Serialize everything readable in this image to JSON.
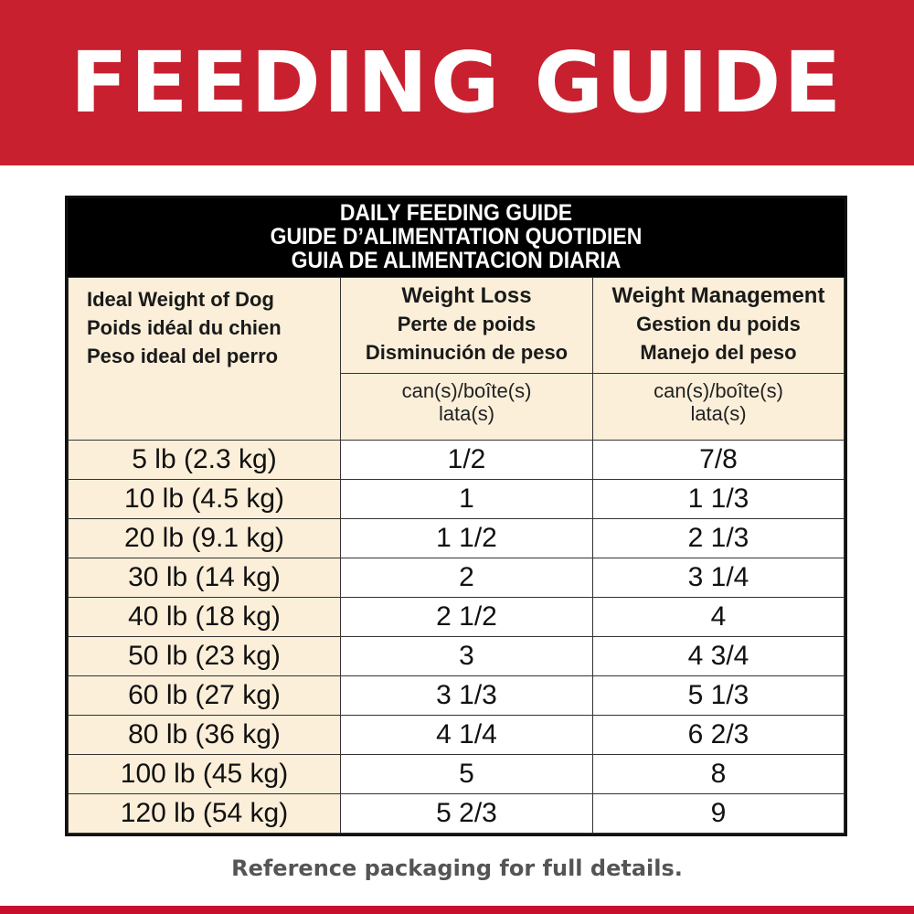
{
  "banner": {
    "title": "FEEDING GUIDE",
    "color": "#c8202f"
  },
  "table": {
    "title_lines": [
      "DAILY FEEDING GUIDE",
      "GUIDE D’ALIMENTATION QUOTIDIEN",
      "GUIA DE ALIMENTACION DIARIA"
    ],
    "col1": [
      "Ideal Weight of Dog",
      "Poids idéal du chien",
      "Peso ideal del perro"
    ],
    "col2": [
      "Weight Loss",
      "Perte de poids",
      "Disminución de peso"
    ],
    "col3": [
      "Weight Management",
      "Gestion du poids",
      "Manejo del peso"
    ],
    "unit": [
      "can(s)/boîte(s)",
      "lata(s)"
    ],
    "rows": [
      {
        "weight": "5 lb (2.3 kg)",
        "loss": "1/2",
        "management": "7/8"
      },
      {
        "weight": "10 lb (4.5 kg)",
        "loss": "1",
        "management": "1 1/3"
      },
      {
        "weight": "20 lb (9.1 kg)",
        "loss": "1 1/2",
        "management": "2 1/3"
      },
      {
        "weight": "30 lb (14 kg)",
        "loss": "2",
        "management": "3 1/4"
      },
      {
        "weight": "40 lb (18 kg)",
        "loss": "2 1/2",
        "management": "4"
      },
      {
        "weight": "50 lb (23 kg)",
        "loss": "3",
        "management": "4 3/4"
      },
      {
        "weight": "60 lb (27 kg)",
        "loss": "3 1/3",
        "management": "5 1/3"
      },
      {
        "weight": "80 lb (36 kg)",
        "loss": "4 1/4",
        "management": "6 2/3"
      },
      {
        "weight": "100 lb (45 kg)",
        "loss": "5",
        "management": "8"
      },
      {
        "weight": "120 lb (54 kg)",
        "loss": "5 2/3",
        "management": "9"
      }
    ]
  },
  "footer": "Reference packaging for full details."
}
